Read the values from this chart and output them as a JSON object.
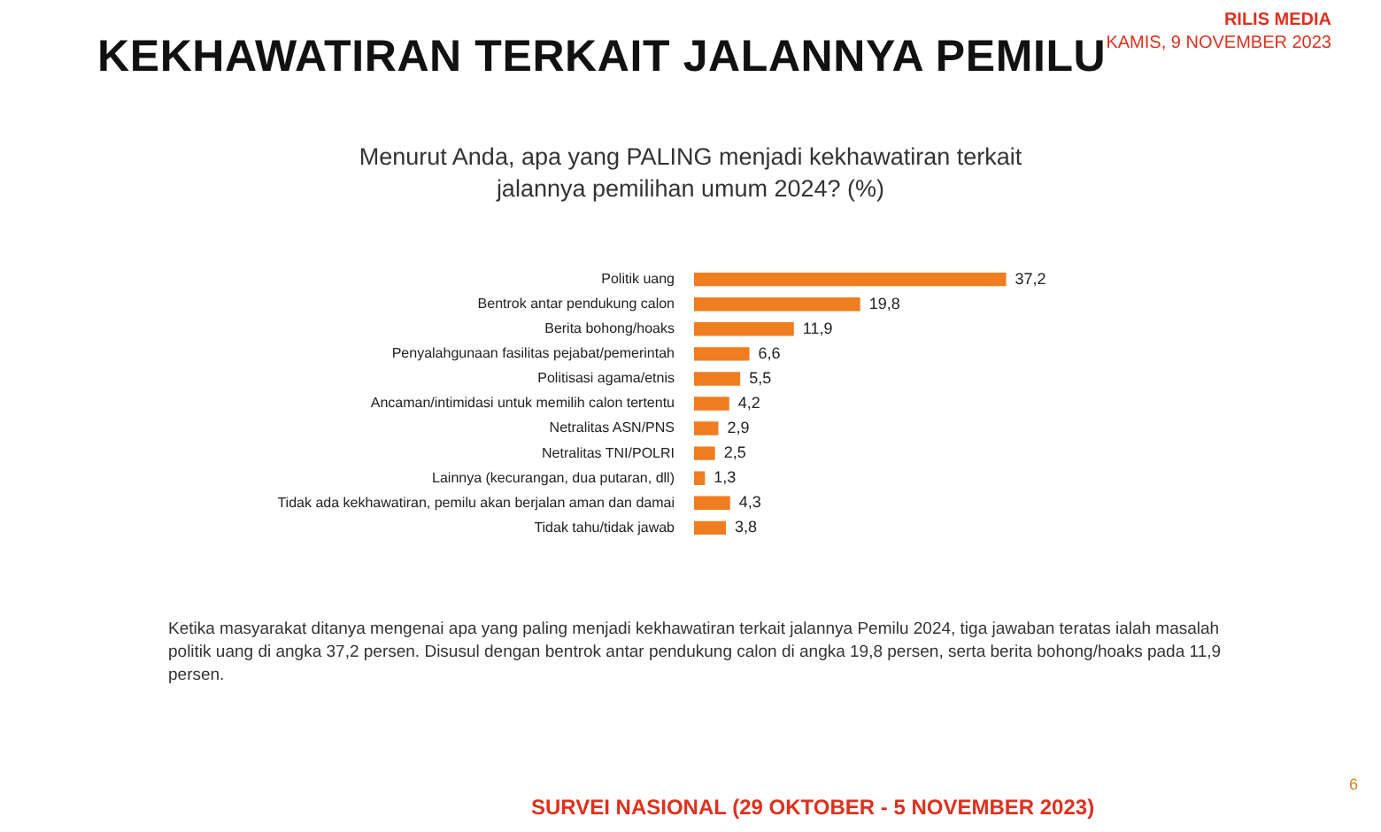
{
  "chart_data": {
    "type": "bar",
    "orientation": "horizontal",
    "title": "KEKHAWATIRAN TERKAIT JALANNYA PEMILU",
    "subtitle": "Menurut Anda, apa yang PALING menjadi kekhawatiran terkait jalannya pemilihan umum 2024? (%)",
    "categories": [
      "Politik uang",
      "Bentrok antar pendukung calon",
      "Berita bohong/hoaks",
      "Penyalahgunaan fasilitas pejabat/pemerintah",
      "Politisasi agama/etnis",
      "Ancaman/intimidasi untuk memilih calon tertentu",
      "Netralitas ASN/PNS",
      "Netralitas TNI/POLRI",
      "Lainnya (kecurangan, dua putaran, dll)",
      "Tidak ada kekhawatiran, pemilu akan berjalan aman dan damai",
      "Tidak tahu/tidak jawab"
    ],
    "values": [
      37.2,
      19.8,
      11.9,
      6.6,
      5.5,
      4.2,
      2.9,
      2.5,
      1.3,
      4.3,
      3.8
    ],
    "value_labels": [
      "37,2",
      "19,8",
      "11,9",
      "6,6",
      "5,5",
      "4,2",
      "2,9",
      "2,5",
      "1,3",
      "4,3",
      "3,8"
    ],
    "color": "#f07d1f",
    "tick_labels": "y",
    "annotations": [
      "RILIS MEDIA",
      "KAMIS, 9 NOVEMBER 2023",
      "Ketika masyarakat ditanya mengenai apa yang paling menjadi kekhawatiran terkait jalannya Pemilu 2024, tiga jawaban teratas ialah masalah politik uang di angka 37,2 persen. Disusul dengan bentrok antar pendukung calon di angka 19,8 persen, serta berita bohong/hoaks pada 11,9 persen.",
      "SURVEI NASIONAL (29 OKTOBER - 5 NOVEMBER 2023)",
      "6"
    ]
  }
}
